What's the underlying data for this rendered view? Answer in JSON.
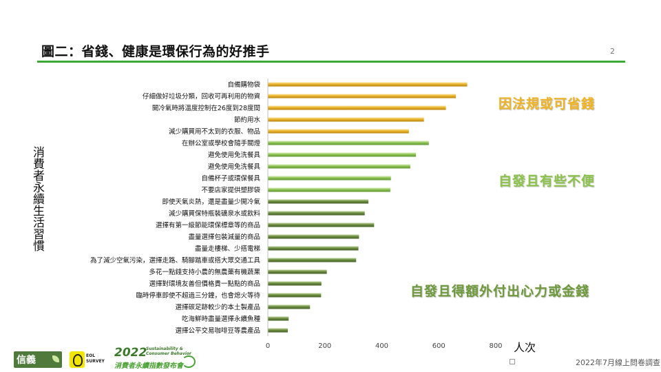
{
  "slide": {
    "title": "圖二：省錢、健康是環保行為的好推手",
    "page_number": "2",
    "source_note": "2022年7月線上問卷調查"
  },
  "annotations": [
    {
      "text": "因法規或可省錢",
      "color": "#f0b323"
    },
    {
      "text": "自發且有些不便",
      "color": "#8bc34a"
    },
    {
      "text": "自發且得額外付出心力或金錢",
      "color": "#6e9a3c"
    }
  ],
  "logos": {
    "xinyi": "信義",
    "survey_brand": "EOL SURVEY",
    "event_year": "2022",
    "event_sub": "Sustainability & Consumer Behavior",
    "event_name": "消費者永續指數發布會"
  },
  "chart_data": {
    "type": "bar",
    "orientation": "horizontal",
    "ylabel": "消費者永續生活習慣",
    "xlabel": "人次",
    "xlim": [
      0,
      800
    ],
    "xticks": [
      0,
      200,
      400,
      600,
      800
    ],
    "grid": false,
    "group_colors": {
      "regulation_or_saving": "#e8b32a",
      "voluntary_inconvenient": "#8cc152",
      "voluntary_extra_effort": "#6b8c3e"
    },
    "categories": [
      "自備購物袋",
      "仔細做好垃圾分類，回收可再利用的物資",
      "開冷氣時將溫度控制在26度到28度間",
      "節約用水",
      "減少購買用不太到的衣服、物品",
      "在辦公室或學校會隨手關燈",
      "避免使用免洗餐具",
      "避免使用免洗餐具",
      "自備杯子或環保餐具",
      "不要店家提供塑膠袋",
      "即使天氣炎熱，還是盡量少開冷氣",
      "減少購買保特瓶裝礦泉水或飲料",
      "選擇有第一級節能環保標章等的商品",
      "盡量選擇包裝減量的商品",
      "盡量走樓梯、少搭電梯",
      "為了減少空氣污染，選擇走路、騎腳踏車或搭大眾交通工具",
      "多花一點錢支持小農的無農藥有機蔬果",
      "選擇對環境友善但價格貴一點點的商品",
      "臨時停車即使不超過三分鐘，也會熄火等待",
      "選擇碳足跡較少的本土製產品",
      "吃海鮮時盡量選擇永續魚種",
      "選擇公平交易咖啡豆等農產品"
    ],
    "values": [
      700,
      660,
      625,
      548,
      495,
      565,
      520,
      500,
      432,
      430,
      353,
      340,
      373,
      320,
      318,
      310,
      207,
      188,
      187,
      148,
      73,
      70
    ],
    "groups": [
      "regulation_or_saving",
      "regulation_or_saving",
      "regulation_or_saving",
      "regulation_or_saving",
      "regulation_or_saving",
      "voluntary_inconvenient",
      "voluntary_inconvenient",
      "voluntary_inconvenient",
      "voluntary_inconvenient",
      "voluntary_inconvenient",
      "voluntary_extra_effort",
      "voluntary_extra_effort",
      "voluntary_extra_effort",
      "voluntary_extra_effort",
      "voluntary_extra_effort",
      "voluntary_extra_effort",
      "voluntary_extra_effort",
      "voluntary_extra_effort",
      "voluntary_extra_effort",
      "voluntary_extra_effort",
      "voluntary_extra_effort",
      "voluntary_extra_effort"
    ]
  }
}
